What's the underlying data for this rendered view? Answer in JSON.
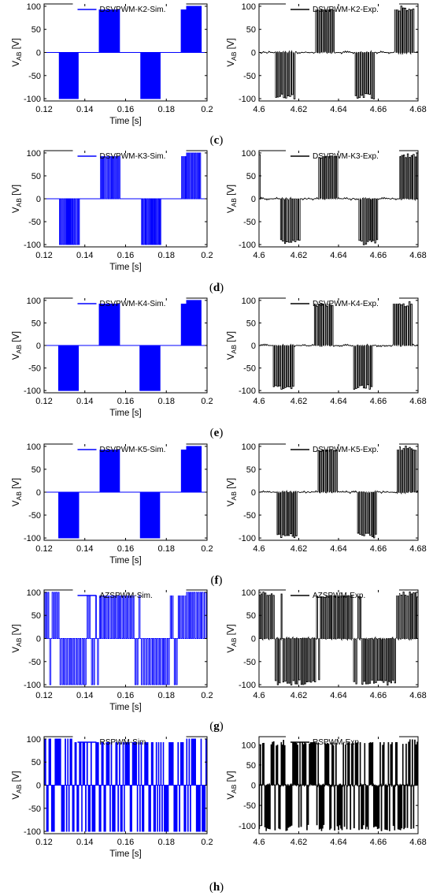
{
  "colors": {
    "sim": "#0000ff",
    "exp": "#000000"
  },
  "figure": {
    "panel_labels": [
      "(c)",
      "(d)",
      "(e)",
      "(f)",
      "(g)",
      "(h)"
    ]
  },
  "chart_data": [
    {
      "type": "line",
      "panel": "c",
      "legend": "DSVPWM-K2-Sim.",
      "color": "#0000ff",
      "mode": "dsv",
      "xlabel": "Time [s]",
      "ylabel": "V_AB [V]",
      "xlim": [
        0.12,
        0.2
      ],
      "ylim": [
        -105,
        105
      ],
      "xticks": [
        0.12,
        0.14,
        0.16,
        0.18,
        0.2
      ],
      "xtick_labels": [
        "0.12",
        "0.14",
        "0.16",
        "0.18",
        "0.2"
      ],
      "yticks": [
        -100,
        -50,
        0,
        50,
        100
      ],
      "ytick_labels": [
        "-100",
        "-50",
        "0",
        "50",
        "100"
      ],
      "t0": 0.107,
      "level": 100,
      "period": 0.0005,
      "duty": 0.5,
      "noise": 0
    },
    {
      "type": "line",
      "panel": "c",
      "legend": "DSVPWM-K2-Exp.",
      "color": "#000000",
      "mode": "dsv",
      "xlabel": "",
      "ylabel": "V_AB [V]",
      "xlim": [
        4.6,
        4.68
      ],
      "ylim": [
        -105,
        105
      ],
      "xticks": [
        4.6,
        4.62,
        4.64,
        4.66,
        4.68
      ],
      "xtick_labels": [
        "4.6",
        "4.62",
        "4.64",
        "4.66",
        "4.68"
      ],
      "yticks": [
        -100,
        -50,
        0,
        50,
        100
      ],
      "ytick_labels": [
        "-100",
        "-50",
        "0",
        "50",
        "100"
      ],
      "t0": 4.588,
      "level": 95,
      "period": 0.001,
      "duty": 0.65,
      "noise": 6
    },
    {
      "type": "line",
      "panel": "d",
      "legend": "DSVPWM-K3-Sim.",
      "color": "#0000ff",
      "mode": "dsv",
      "xlabel": "Time [s]",
      "ylabel": "V_AB [V]",
      "xlim": [
        0.12,
        0.2
      ],
      "ylim": [
        -105,
        105
      ],
      "xticks": [
        0.12,
        0.14,
        0.16,
        0.18,
        0.2
      ],
      "xtick_labels": [
        "0.12",
        "0.14",
        "0.16",
        "0.18",
        "0.2"
      ],
      "yticks": [
        -100,
        -50,
        0,
        50,
        100
      ],
      "ytick_labels": [
        "-100",
        "-50",
        "0",
        "50",
        "100"
      ],
      "t0": 0.107,
      "level": 100,
      "period": 0.0008,
      "duty": 0.5,
      "noise": 0
    },
    {
      "type": "line",
      "panel": "d",
      "legend": "DSVPWM-K3-Exp.",
      "color": "#000000",
      "mode": "dsv",
      "xlabel": "",
      "ylabel": "V_AB [V]",
      "xlim": [
        4.6,
        4.68
      ],
      "ylim": [
        -105,
        105
      ],
      "xticks": [
        4.6,
        4.62,
        4.64,
        4.66,
        4.68
      ],
      "xtick_labels": [
        "4.6",
        "4.62",
        "4.64",
        "4.66",
        "4.68"
      ],
      "yticks": [
        -100,
        -50,
        0,
        50,
        100
      ],
      "ytick_labels": [
        "-100",
        "-50",
        "0",
        "50",
        "100"
      ],
      "t0": 4.59,
      "level": 95,
      "period": 0.001,
      "duty": 0.6,
      "noise": 6
    },
    {
      "type": "line",
      "panel": "e",
      "legend": "DSVPWM-K4-Sim.",
      "color": "#0000ff",
      "mode": "dsv",
      "xlabel": "Time [s]",
      "ylabel": "V_AB [V]",
      "xlim": [
        0.12,
        0.2
      ],
      "ylim": [
        -105,
        105
      ],
      "xticks": [
        0.12,
        0.14,
        0.16,
        0.18,
        0.2
      ],
      "xtick_labels": [
        "0.12",
        "0.14",
        "0.16",
        "0.18",
        "0.2"
      ],
      "yticks": [
        -100,
        -50,
        0,
        50,
        100
      ],
      "ytick_labels": [
        "-100",
        "-50",
        "0",
        "50",
        "100"
      ],
      "t0": 0.107,
      "level": 100,
      "period": 0.0005,
      "duty": 0.5,
      "noise": 0
    },
    {
      "type": "line",
      "panel": "e",
      "legend": "DSVPWM-K4-Exp.",
      "color": "#000000",
      "mode": "dsv",
      "xlabel": "",
      "ylabel": "V_AB [V]",
      "xlim": [
        4.6,
        4.68
      ],
      "ylim": [
        -105,
        105
      ],
      "xticks": [
        4.6,
        4.62,
        4.64,
        4.66,
        4.68
      ],
      "xtick_labels": [
        "4.6",
        "4.62",
        "4.64",
        "4.66",
        "4.68"
      ],
      "yticks": [
        -100,
        -50,
        0,
        50,
        100
      ],
      "ytick_labels": [
        "-100",
        "-50",
        "0",
        "50",
        "100"
      ],
      "t0": 4.587,
      "level": 92,
      "period": 0.001,
      "duty": 0.65,
      "noise": 6
    },
    {
      "type": "line",
      "panel": "f",
      "legend": "DSVPWM-K5-Sim.",
      "color": "#0000ff",
      "mode": "dsv",
      "xlabel": "Time [s]",
      "ylabel": "V_AB [V]",
      "xlim": [
        0.12,
        0.2
      ],
      "ylim": [
        -105,
        105
      ],
      "xticks": [
        0.12,
        0.14,
        0.16,
        0.18,
        0.2
      ],
      "xtick_labels": [
        "0.12",
        "0.14",
        "0.16",
        "0.18",
        "0.2"
      ],
      "yticks": [
        -100,
        -50,
        0,
        50,
        100
      ],
      "ytick_labels": [
        "-100",
        "-50",
        "0",
        "50",
        "100"
      ],
      "t0": 0.107,
      "level": 100,
      "period": 0.0005,
      "duty": 0.5,
      "noise": 0
    },
    {
      "type": "line",
      "panel": "f",
      "legend": "DSVPWM-K5-Exp.",
      "color": "#000000",
      "mode": "dsv",
      "xlabel": "",
      "ylabel": "V_AB [V]",
      "xlim": [
        4.6,
        4.68
      ],
      "ylim": [
        -105,
        105
      ],
      "xticks": [
        4.6,
        4.62,
        4.64,
        4.66,
        4.68
      ],
      "xtick_labels": [
        "4.6",
        "4.62",
        "4.64",
        "4.66",
        "4.68"
      ],
      "yticks": [
        -100,
        -50,
        0,
        50,
        100
      ],
      "ytick_labels": [
        "-100",
        "-50",
        "0",
        "50",
        "100"
      ],
      "t0": 4.589,
      "level": 95,
      "period": 0.001,
      "duty": 0.6,
      "noise": 6
    },
    {
      "type": "line",
      "panel": "g",
      "legend": "AZSPWM-Sim.",
      "color": "#0000ff",
      "mode": "azs",
      "xlabel": "Time [s]",
      "ylabel": "V_AB [V]",
      "xlim": [
        0.12,
        0.2
      ],
      "ylim": [
        -105,
        105
      ],
      "xticks": [
        0.12,
        0.14,
        0.16,
        0.18,
        0.2
      ],
      "xtick_labels": [
        "0.12",
        "0.14",
        "0.16",
        "0.18",
        "0.2"
      ],
      "yticks": [
        -100,
        -50,
        0,
        50,
        100
      ],
      "ytick_labels": [
        "-100",
        "-50",
        "0",
        "50",
        "100"
      ],
      "t0": 0.107,
      "level": 100,
      "period": 0.001,
      "duty": 0.5,
      "noise": 0
    },
    {
      "type": "line",
      "panel": "g",
      "legend": "AZSPWM-Exp.",
      "color": "#000000",
      "mode": "azs",
      "xlabel": "",
      "ylabel": "V_AB [V]",
      "xlim": [
        4.6,
        4.68
      ],
      "ylim": [
        -105,
        105
      ],
      "xticks": [
        4.6,
        4.62,
        4.64,
        4.66,
        4.68
      ],
      "xtick_labels": [
        "4.6",
        "4.62",
        "4.64",
        "4.66",
        "4.68"
      ],
      "yticks": [
        -100,
        -50,
        0,
        50,
        100
      ],
      "ytick_labels": [
        "-100",
        "-50",
        "0",
        "50",
        "100"
      ],
      "t0": 4.592,
      "level": 95,
      "period": 0.001,
      "duty": 0.55,
      "noise": 6
    },
    {
      "type": "line",
      "panel": "h",
      "legend": "RSPWM-Sim.",
      "color": "#0000ff",
      "mode": "rs",
      "xlabel": "Time [s]",
      "ylabel": "V_AB [V]",
      "xlim": [
        0.12,
        0.2
      ],
      "ylim": [
        -105,
        105
      ],
      "xticks": [
        0.12,
        0.14,
        0.16,
        0.18,
        0.2
      ],
      "xtick_labels": [
        "0.12",
        "0.14",
        "0.16",
        "0.18",
        "0.2"
      ],
      "yticks": [
        -100,
        -50,
        0,
        50,
        100
      ],
      "ytick_labels": [
        "-100",
        "-50",
        "0",
        "50",
        "100"
      ],
      "t0": 0.107,
      "level": 100,
      "period": 0.0006,
      "duty": 0.5,
      "noise": 0
    },
    {
      "type": "line",
      "panel": "h",
      "legend": "RSPWM-Exp.",
      "color": "#000000",
      "mode": "rs",
      "xlabel": "",
      "ylabel": "V_AB [V]",
      "xlim": [
        4.6,
        4.68
      ],
      "ylim": [
        -120,
        120
      ],
      "xticks": [
        4.6,
        4.62,
        4.64,
        4.66,
        4.68
      ],
      "xtick_labels": [
        "4.6",
        "4.62",
        "4.64",
        "4.66",
        "4.68"
      ],
      "yticks": [
        -100,
        -50,
        0,
        50,
        100
      ],
      "ytick_labels": [
        "-100",
        "-50",
        "0",
        "50",
        "100"
      ],
      "t0": 4.592,
      "level": 105,
      "period": 0.0006,
      "duty": 0.5,
      "noise": 8
    }
  ]
}
